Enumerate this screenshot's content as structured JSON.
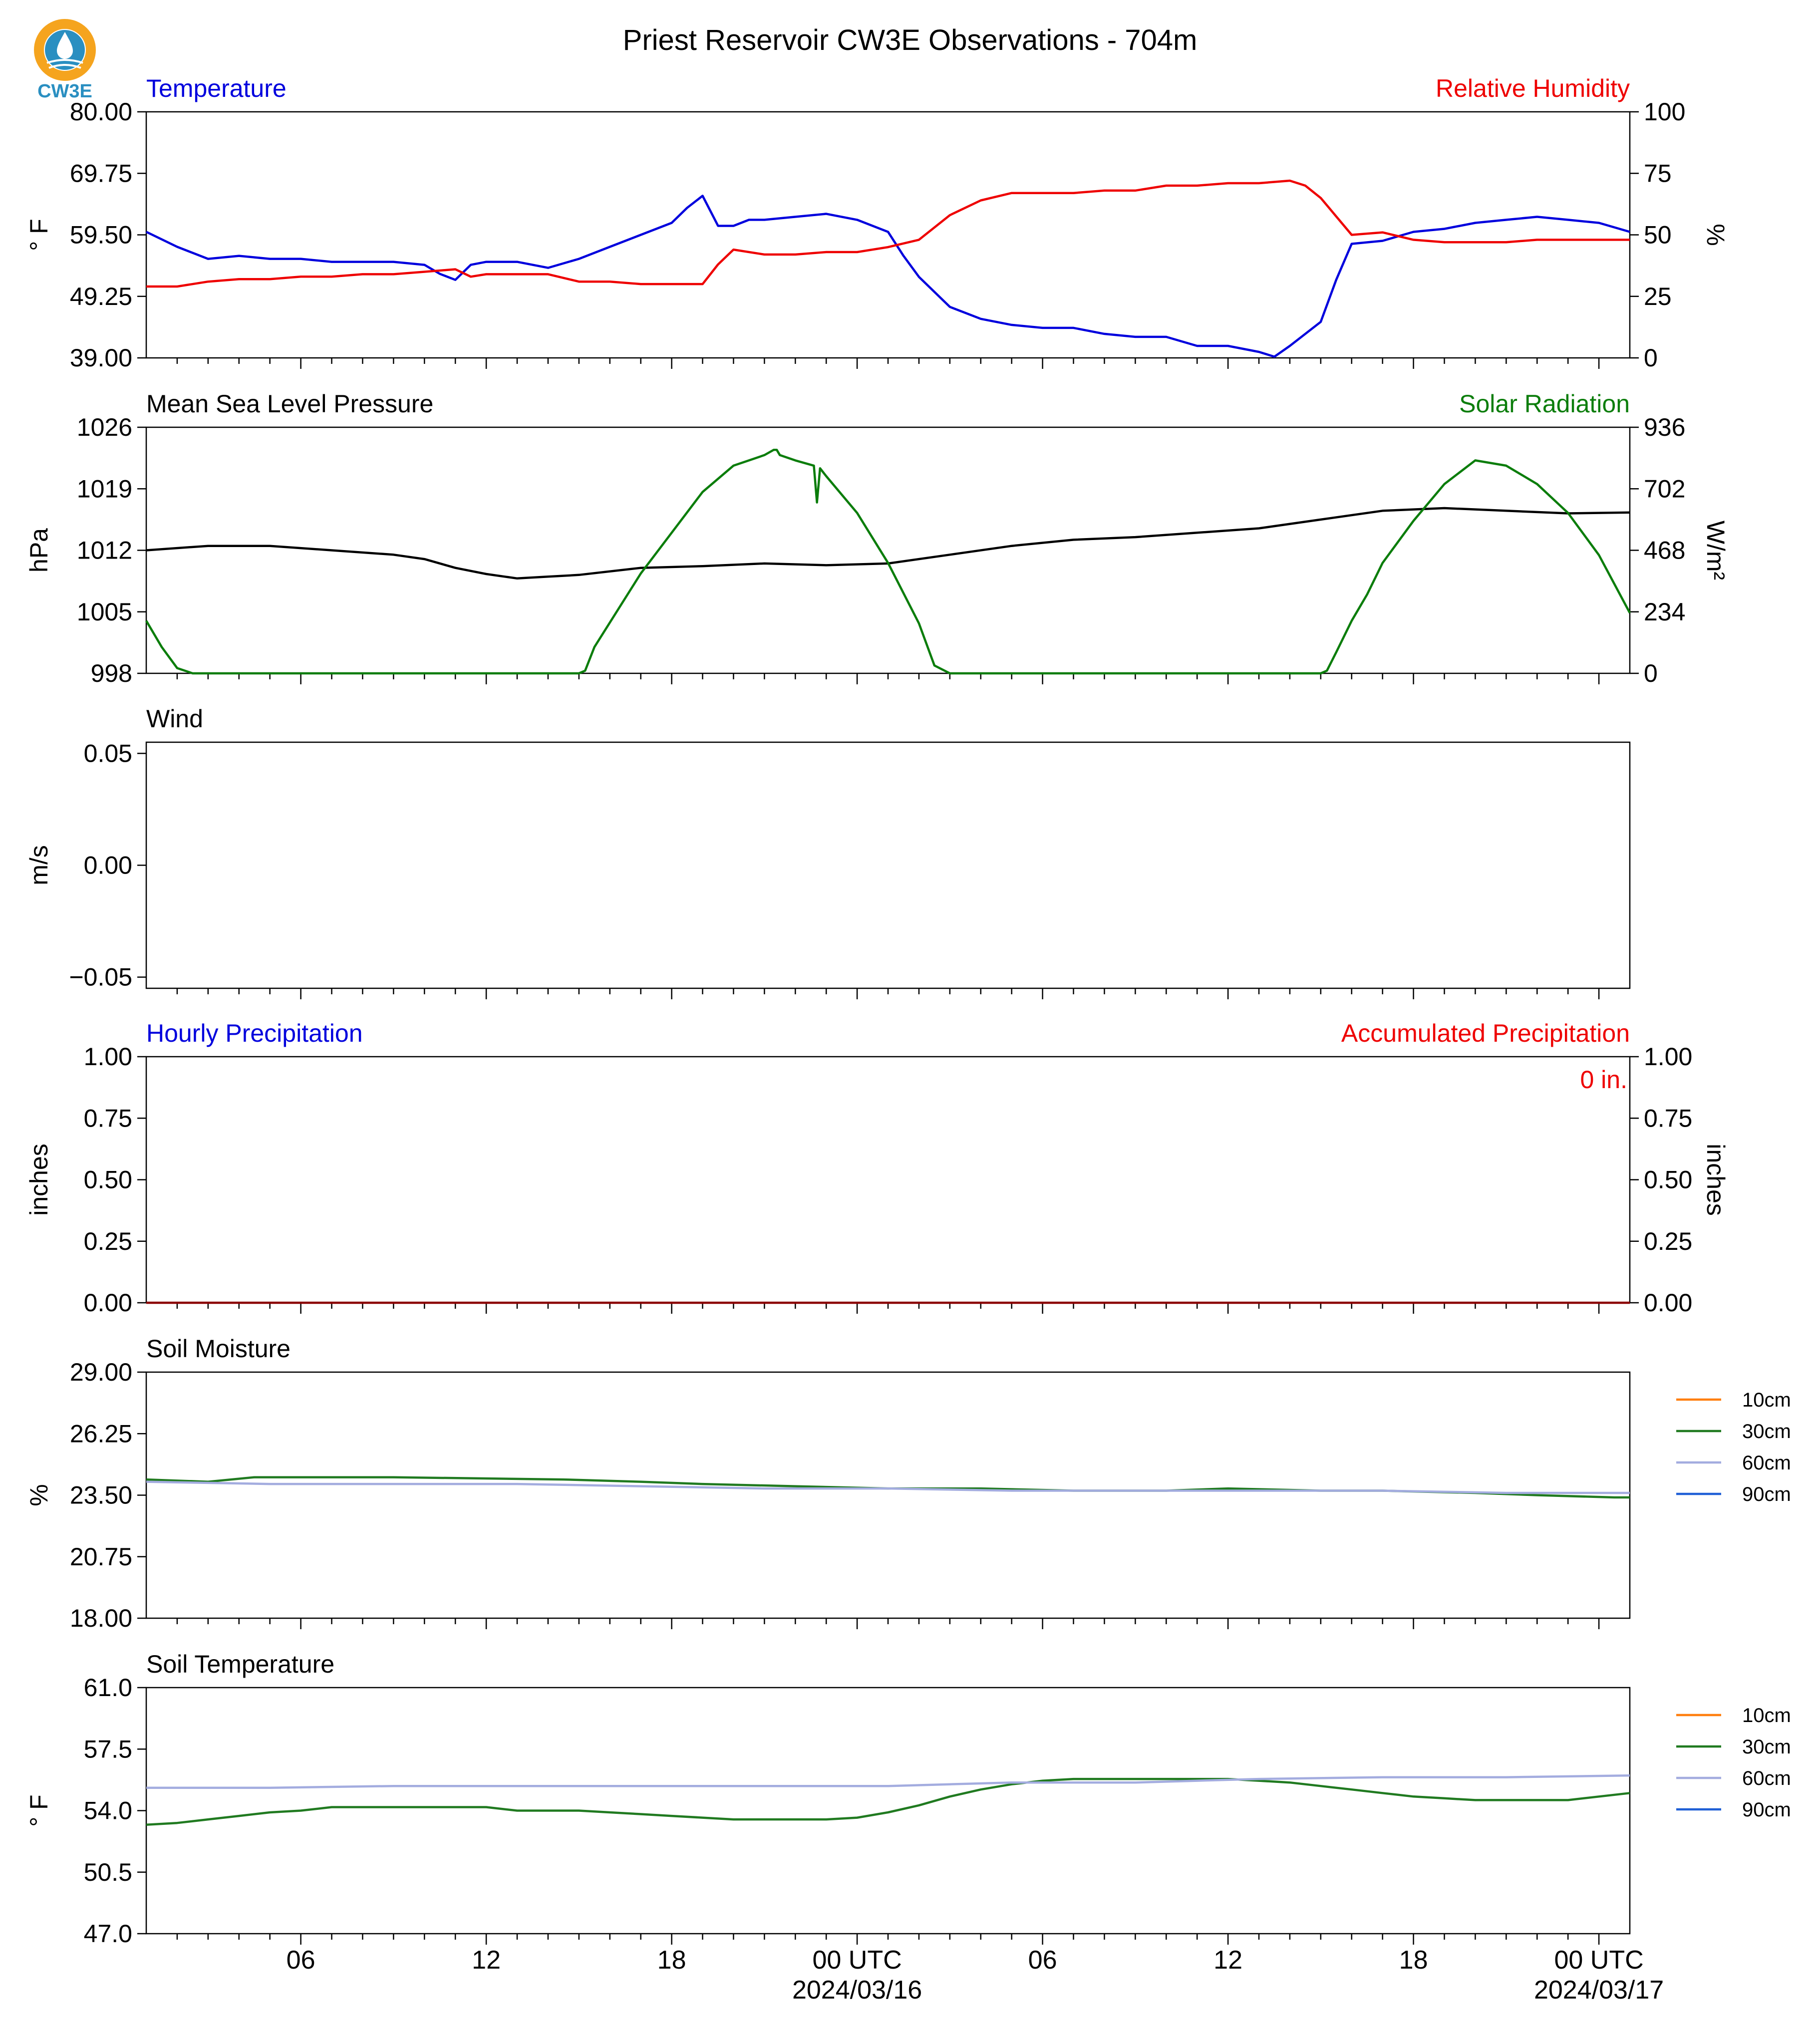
{
  "title": "Priest Reservoir CW3E Observations - 704m",
  "logo": {
    "text": "CW3E",
    "colors": {
      "ring": "#f5a41e",
      "drop": "#2a8fc1",
      "text": "#2a8fc1"
    }
  },
  "x_axis": {
    "ticks": [
      {
        "label": "06",
        "hour": 5
      },
      {
        "label": "12",
        "hour": 11
      },
      {
        "label": "18",
        "hour": 17
      },
      {
        "label": "00 UTC",
        "hour": 23,
        "date": "2024/03/16"
      },
      {
        "label": "06",
        "hour": 29
      },
      {
        "label": "12",
        "hour": 35
      },
      {
        "label": "18",
        "hour": 41
      },
      {
        "label": "00 UTC",
        "hour": 47,
        "date": "2024/03/17"
      }
    ],
    "range_hours": [
      0,
      48
    ]
  },
  "chart_data": [
    {
      "type": "line",
      "title_left": "Temperature",
      "title_right": "Relative Humidity",
      "ylabel_left": "° F",
      "ylabel_right": "%",
      "ylim_left": [
        39.0,
        80.0
      ],
      "ylim_right": [
        0,
        100
      ],
      "yticks_left": [
        "39.00",
        "49.25",
        "59.50",
        "69.75",
        "80.00"
      ],
      "yticks_right": [
        "0",
        "25",
        "50",
        "75",
        "100"
      ],
      "series": [
        {
          "name": "Temperature",
          "axis": "left",
          "color": "#0000dd",
          "x": [
            0,
            1,
            2,
            3,
            4,
            5,
            6,
            7,
            8,
            9,
            9.5,
            10,
            10.5,
            11,
            12,
            13,
            14,
            15,
            16,
            17,
            17.5,
            18,
            18.5,
            19,
            19.5,
            20,
            21,
            22,
            23,
            24,
            24.5,
            25,
            26,
            27,
            28,
            29,
            30,
            31,
            32,
            33,
            34,
            35,
            36,
            36.5,
            37,
            38,
            38.5,
            39,
            40,
            41,
            42,
            43,
            44,
            45,
            46,
            47,
            48
          ],
          "y": [
            60.0,
            57.5,
            55.5,
            56.0,
            55.5,
            55.5,
            55.0,
            55.0,
            55.0,
            54.5,
            53.0,
            52.0,
            54.5,
            55.0,
            55.0,
            54.0,
            55.5,
            57.5,
            59.5,
            61.5,
            64.0,
            66.0,
            61.0,
            61.0,
            62.0,
            62.0,
            62.5,
            63.0,
            62.0,
            60.0,
            56.0,
            52.5,
            47.5,
            45.5,
            44.5,
            44.0,
            44.0,
            43.0,
            42.5,
            42.5,
            41.0,
            41.0,
            40.0,
            39.2,
            41.0,
            45.0,
            52.0,
            58.0,
            58.5,
            60.0,
            60.5,
            61.5,
            62.0,
            62.5,
            62.0,
            61.5,
            60.0
          ]
        },
        {
          "name": "Relative Humidity",
          "axis": "right",
          "color": "#ee0000",
          "x": [
            0,
            1,
            2,
            3,
            4,
            5,
            6,
            7,
            8,
            9,
            10,
            10.5,
            11,
            12,
            13,
            14,
            15,
            16,
            17,
            18,
            18.5,
            19,
            20,
            21,
            22,
            23,
            24,
            25,
            26,
            27,
            28,
            29,
            30,
            31,
            32,
            33,
            34,
            35,
            36,
            37,
            37.5,
            38,
            39,
            40,
            41,
            42,
            43,
            44,
            45,
            46,
            47,
            48
          ],
          "y": [
            29,
            29,
            31,
            32,
            32,
            33,
            33,
            34,
            34,
            35,
            36,
            33,
            34,
            34,
            34,
            31,
            31,
            30,
            30,
            30,
            38,
            44,
            42,
            42,
            43,
            43,
            45,
            48,
            58,
            64,
            67,
            67,
            67,
            68,
            68,
            70,
            70,
            71,
            71,
            72,
            70,
            65,
            50,
            51,
            48,
            47,
            47,
            47,
            48,
            48,
            48,
            48
          ]
        }
      ]
    },
    {
      "type": "line",
      "title_left": "Mean Sea Level Pressure",
      "title_right": "Solar Radiation",
      "ylabel_left": "hPa",
      "ylabel_right": "W/m²",
      "ylim_left": [
        998,
        1026
      ],
      "ylim_right": [
        0,
        936
      ],
      "yticks_left": [
        "998",
        "1005",
        "1012",
        "1019",
        "1026"
      ],
      "yticks_right": [
        "0",
        "234",
        "468",
        "702",
        "936"
      ],
      "series": [
        {
          "name": "Mean Sea Level Pressure",
          "axis": "left",
          "color": "#000000",
          "x": [
            0,
            2,
            4,
            6,
            8,
            9,
            10,
            11,
            12,
            13,
            14,
            16,
            18,
            20,
            22,
            24,
            26,
            28,
            30,
            32,
            34,
            36,
            38,
            40,
            42,
            44,
            46,
            48
          ],
          "y": [
            1012.0,
            1012.5,
            1012.5,
            1012.0,
            1011.5,
            1011.0,
            1010.0,
            1009.3,
            1008.8,
            1009.0,
            1009.2,
            1010.0,
            1010.2,
            1010.5,
            1010.3,
            1010.5,
            1011.5,
            1012.5,
            1013.2,
            1013.5,
            1014.0,
            1014.5,
            1015.5,
            1016.5,
            1016.8,
            1016.5,
            1016.2,
            1016.3
          ]
        },
        {
          "name": "Solar Radiation",
          "axis": "right",
          "color": "#0b7d0b",
          "x": [
            0,
            0.5,
            1,
            1.5,
            3,
            14,
            14.2,
            14.5,
            16,
            18,
            19,
            19.5,
            20,
            20.3,
            20.4,
            20.5,
            21,
            21.6,
            21.7,
            21.8,
            22,
            23,
            24,
            25,
            25.5,
            26,
            30,
            38,
            38.2,
            38.5,
            39,
            39.5,
            40,
            41,
            42,
            43,
            44,
            45,
            46,
            47,
            48
          ],
          "y": [
            200,
            100,
            20,
            0,
            0,
            0,
            10,
            100,
            380,
            690,
            790,
            810,
            830,
            850,
            850,
            830,
            810,
            790,
            650,
            780,
            750,
            610,
            420,
            190,
            30,
            0,
            0,
            0,
            10,
            80,
            200,
            300,
            420,
            580,
            720,
            810,
            790,
            720,
            610,
            450,
            230
          ]
        }
      ]
    },
    {
      "type": "line",
      "title_left": "Wind",
      "ylabel_left": "m/s",
      "ylim_left": [
        -0.055,
        0.055
      ],
      "yticks_left": [
        "−0.05",
        "0.00",
        "0.05"
      ],
      "yticks_values": [
        -0.05,
        0.0,
        0.05
      ],
      "series": []
    },
    {
      "type": "line",
      "title_left": "Hourly Precipitation",
      "title_right": "Accumulated Precipitation",
      "ylabel_left": "inches",
      "ylabel_right": "inches",
      "ylim_left": [
        0,
        1
      ],
      "ylim_right": [
        0,
        1
      ],
      "yticks_left": [
        "0.00",
        "0.25",
        "0.50",
        "0.75",
        "1.00"
      ],
      "yticks_right": [
        "0.00",
        "0.25",
        "0.50",
        "0.75",
        "1.00"
      ],
      "annotation": "0 in.",
      "series": [
        {
          "name": "Accumulated Precipitation",
          "axis": "right",
          "color": "#8b0000",
          "x": [
            0,
            48
          ],
          "y": [
            0,
            0
          ]
        }
      ]
    },
    {
      "type": "line",
      "title_left": "Soil Moisture",
      "ylabel_left": "%",
      "ylim_left": [
        18.0,
        29.0
      ],
      "yticks_left": [
        "18.00",
        "20.75",
        "23.50",
        "26.25",
        "29.00"
      ],
      "legend": [
        "10cm",
        "30cm",
        "60cm",
        "90cm"
      ],
      "series": [
        {
          "name": "10cm",
          "color": "#ff7f0e",
          "x": [],
          "y": []
        },
        {
          "name": "30cm",
          "color": "#207a20",
          "x": [
            0,
            2,
            3.5,
            8,
            13.5,
            16,
            18,
            21,
            24,
            27,
            30,
            33,
            35,
            38,
            40,
            43,
            45,
            47.5,
            48
          ],
          "y": [
            24.2,
            24.1,
            24.3,
            24.3,
            24.2,
            24.1,
            24.0,
            23.9,
            23.8,
            23.8,
            23.7,
            23.7,
            23.8,
            23.7,
            23.7,
            23.6,
            23.5,
            23.4,
            23.4
          ]
        },
        {
          "name": "60cm",
          "color": "#a3acdf",
          "x": [
            0,
            4,
            8,
            12,
            16,
            20,
            24,
            28,
            32,
            36,
            40,
            44,
            48
          ],
          "y": [
            24.1,
            24.0,
            24.0,
            24.0,
            23.9,
            23.8,
            23.8,
            23.7,
            23.7,
            23.7,
            23.7,
            23.6,
            23.6
          ]
        },
        {
          "name": "90cm",
          "color": "#1f5fd6",
          "x": [],
          "y": []
        }
      ]
    },
    {
      "type": "line",
      "title_left": "Soil Temperature",
      "ylabel_left": "° F",
      "ylim_left": [
        47.0,
        61.0
      ],
      "yticks_left": [
        "47.0",
        "50.5",
        "54.0",
        "57.5",
        "61.0"
      ],
      "legend": [
        "10cm",
        "30cm",
        "60cm",
        "90cm"
      ],
      "series": [
        {
          "name": "10cm",
          "color": "#ff7f0e",
          "x": [],
          "y": []
        },
        {
          "name": "30cm",
          "color": "#207a20",
          "x": [
            0,
            1,
            2,
            3,
            4,
            5,
            6,
            11,
            12,
            14,
            15,
            16,
            17,
            18,
            19,
            20,
            21,
            22,
            23,
            24,
            25,
            26,
            27,
            28,
            29,
            30,
            31,
            32,
            33,
            34,
            35,
            36,
            37,
            38,
            39,
            40,
            41,
            42,
            43,
            44,
            45,
            46,
            47,
            48
          ],
          "y": [
            53.2,
            53.3,
            53.5,
            53.7,
            53.9,
            54.0,
            54.2,
            54.2,
            54.0,
            54.0,
            53.9,
            53.8,
            53.7,
            53.6,
            53.5,
            53.5,
            53.5,
            53.5,
            53.6,
            53.9,
            54.3,
            54.8,
            55.2,
            55.5,
            55.7,
            55.8,
            55.8,
            55.8,
            55.8,
            55.8,
            55.8,
            55.7,
            55.6,
            55.4,
            55.2,
            55.0,
            54.8,
            54.7,
            54.6,
            54.6,
            54.6,
            54.6,
            54.8,
            55.0
          ]
        },
        {
          "name": "60cm",
          "color": "#a3acdf",
          "x": [
            0,
            4,
            8,
            12,
            16,
            20,
            24,
            26,
            28,
            30,
            32,
            34,
            36,
            40,
            44,
            48
          ],
          "y": [
            55.3,
            55.3,
            55.4,
            55.4,
            55.4,
            55.4,
            55.4,
            55.5,
            55.6,
            55.6,
            55.6,
            55.7,
            55.8,
            55.9,
            55.9,
            56.0
          ]
        },
        {
          "name": "90cm",
          "color": "#1f5fd6",
          "x": [],
          "y": []
        }
      ]
    }
  ]
}
